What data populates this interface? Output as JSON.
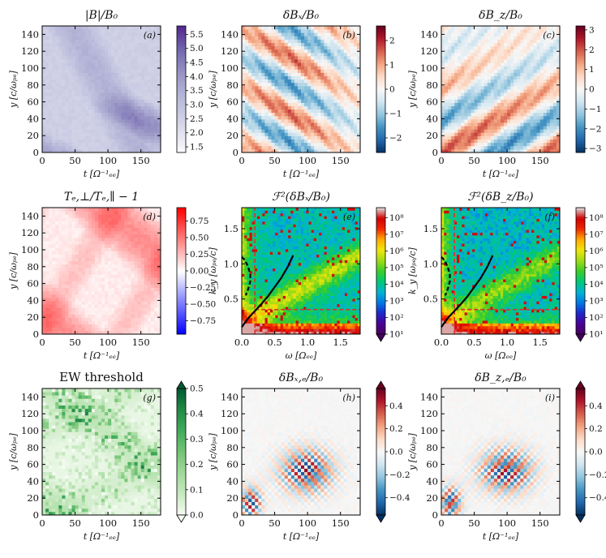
{
  "figure": {
    "panels": [
      {
        "id": "a",
        "tag": "(a)",
        "title": "|B|/B₀",
        "xlabel": "t [Ω⁻¹ₑₑ]",
        "ylabel": "y [c/ωₚₑ]",
        "cmap": "purples",
        "xticks": [
          "0",
          "50",
          "100",
          "150"
        ],
        "yticks": [
          "0",
          "20",
          "40",
          "60",
          "80",
          "100",
          "120",
          "140"
        ],
        "colorbar": {
          "ticks": [
            "1.5",
            "2.0",
            "2.5",
            "3.0",
            "3.5",
            "4.0",
            "4.5",
            "5.0",
            "5.5"
          ],
          "range": [
            1.3,
            5.8
          ],
          "extend": "none"
        }
      },
      {
        "id": "b",
        "tag": "(b)",
        "title": "δBₓ/B₀",
        "xlabel": "t [Ω⁻¹ₑₑ]",
        "ylabel": "y [c/ωₚₑ]",
        "cmap": "rdbu",
        "xticks": [
          "0",
          "50",
          "100",
          "150"
        ],
        "yticks": [
          "0",
          "20",
          "40",
          "60",
          "80",
          "100",
          "120",
          "140"
        ],
        "colorbar": {
          "ticks": [
            "−2",
            "−1",
            "0",
            "1",
            "2"
          ],
          "range": [
            -2.6,
            2.6
          ],
          "extend": "none"
        }
      },
      {
        "id": "c",
        "tag": "(c)",
        "title": "δB_z/B₀",
        "xlabel": "t [Ω⁻¹ₑₑ]",
        "ylabel": "y [c/ωₚₑ]",
        "cmap": "rdbu",
        "xticks": [
          "0",
          "50",
          "100",
          "150"
        ],
        "yticks": [
          "0",
          "20",
          "40",
          "60",
          "80",
          "100",
          "120",
          "140"
        ],
        "colorbar": {
          "ticks": [
            "−3",
            "−2",
            "−1",
            "0",
            "1",
            "2",
            "3"
          ],
          "range": [
            -3.2,
            3.2
          ],
          "extend": "none"
        }
      },
      {
        "id": "d",
        "tag": "(d)",
        "title": "Tₑ,⊥/Tₑ,∥ − 1",
        "xlabel": "t [Ω⁻¹ₑₑ]",
        "ylabel": "y [c/ωₚₑ]",
        "cmap": "bwr",
        "xticks": [
          "0",
          "50",
          "100",
          "150"
        ],
        "yticks": [
          "0",
          "20",
          "40",
          "60",
          "80",
          "100",
          "120",
          "140"
        ],
        "colorbar": {
          "ticks": [
            "−0.75",
            "−0.50",
            "−0.25",
            "0.00",
            "0.25",
            "0.50",
            "0.75"
          ],
          "range": [
            -0.95,
            0.95
          ],
          "extend": "none"
        }
      },
      {
        "id": "e",
        "tag": "(e)",
        "title": "ℱ²(δBₓ/B₀)",
        "xlabel": "ω [Ωₑₑ]",
        "ylabel": "k_y [ωₚₑ/c]",
        "cmap": "spectral",
        "xticks": [
          "0.0",
          "0.5",
          "1.0",
          "1.5"
        ],
        "yticks": [
          "0.5",
          "1.0",
          "1.5"
        ],
        "colorbar": {
          "ticks": [
            "10¹",
            "10²",
            "10³",
            "10⁴",
            "10⁵",
            "10⁶",
            "10⁷",
            "10⁸"
          ],
          "range": [
            1,
            8.6
          ],
          "extend": "min"
        }
      },
      {
        "id": "f",
        "tag": "(f)",
        "title": "ℱ²(δB_z/B₀)",
        "xlabel": "ω [Ωₑₑ]",
        "ylabel": "k_y [ωₚₑ/c]",
        "cmap": "spectral",
        "xticks": [
          "0.0",
          "0.5",
          "1.0",
          "1.5"
        ],
        "yticks": [
          "0.5",
          "1.0",
          "1.5"
        ],
        "colorbar": {
          "ticks": [
            "10¹",
            "10²",
            "10³",
            "10⁴",
            "10⁵",
            "10⁶",
            "10⁷",
            "10⁸"
          ],
          "range": [
            1,
            8.6
          ],
          "extend": "min"
        }
      },
      {
        "id": "g",
        "tag": "(g)",
        "title": "EW threshold",
        "xlabel": "t [Ω⁻¹ₑₑ]",
        "ylabel": "y [c/ωₚₑ]",
        "cmap": "greens",
        "xticks": [
          "0",
          "50",
          "100",
          "150"
        ],
        "yticks": [
          "0",
          "20",
          "40",
          "60",
          "80",
          "100",
          "120",
          "140"
        ],
        "colorbar": {
          "ticks": [
            "0.0",
            "0.1",
            "0.2",
            "0.3",
            "0.4",
            "0.5"
          ],
          "range": [
            0,
            0.5
          ],
          "extend": "both"
        }
      },
      {
        "id": "h",
        "tag": "(h)",
        "title": "δBₓ,ₑ/B₀",
        "xlabel": "t [Ω⁻¹ₑₑ]",
        "ylabel": "y [c/ωₚₑ]",
        "cmap": "rdbu",
        "xticks": [
          "0",
          "50",
          "100",
          "150"
        ],
        "yticks": [
          "0",
          "20",
          "40",
          "60",
          "80",
          "100",
          "120",
          "140"
        ],
        "colorbar": {
          "ticks": [
            "−0.4",
            "−0.2",
            "0.0",
            "0.2",
            "0.4"
          ],
          "range": [
            -0.55,
            0.55
          ],
          "extend": "both"
        }
      },
      {
        "id": "i",
        "tag": "(i)",
        "title": "δB_z,ₑ/B₀",
        "xlabel": "t [Ω⁻¹ₑₑ]",
        "ylabel": "y [c/ωₚₑ]",
        "cmap": "rdbu",
        "xticks": [
          "0",
          "50",
          "100",
          "150"
        ],
        "yticks": [
          "0",
          "20",
          "40",
          "60",
          "80",
          "100",
          "120",
          "140"
        ],
        "colorbar": {
          "ticks": [
            "−0.4",
            "−0.2",
            "0.0",
            "0.2",
            "0.4"
          ],
          "range": [
            -0.55,
            0.55
          ],
          "extend": "both"
        }
      }
    ]
  },
  "chart_data": [
    {
      "type": "heatmap",
      "panel": "a",
      "title": "|B|/B0",
      "xlabel": "t [Ωce^-1]",
      "ylabel": "y [c/ωpe]",
      "xlim": [
        0,
        180
      ],
      "ylim": [
        0,
        150
      ],
      "xticks": [
        0,
        50,
        100,
        150
      ],
      "yticks": [
        0,
        20,
        40,
        60,
        80,
        100,
        120,
        140
      ],
      "colorbar_range": [
        1.3,
        5.8
      ],
      "colorbar_ticks": [
        1.5,
        2.0,
        2.5,
        3.0,
        3.5,
        4.0,
        4.5,
        5.0,
        5.5
      ]
    },
    {
      "type": "heatmap",
      "panel": "b",
      "title": "δBx/B0",
      "xlim": [
        0,
        180
      ],
      "ylim": [
        0,
        150
      ],
      "colorbar_range": [
        -2.6,
        2.6
      ],
      "colorbar_ticks": [
        -2,
        -1,
        0,
        1,
        2
      ]
    },
    {
      "type": "heatmap",
      "panel": "c",
      "title": "δBz/B0",
      "xlim": [
        0,
        180
      ],
      "ylim": [
        0,
        150
      ],
      "colorbar_range": [
        -3.2,
        3.2
      ],
      "colorbar_ticks": [
        -3,
        -2,
        -1,
        0,
        1,
        2,
        3
      ]
    },
    {
      "type": "heatmap",
      "panel": "d",
      "title": "Te,perp/Te,par - 1",
      "xlim": [
        0,
        180
      ],
      "ylim": [
        0,
        150
      ],
      "colorbar_range": [
        -0.95,
        0.95
      ],
      "colorbar_ticks": [
        -0.75,
        -0.5,
        -0.25,
        0,
        0.25,
        0.5,
        0.75
      ]
    },
    {
      "type": "heatmap",
      "panel": "e",
      "title": "F^2(δBx/B0)",
      "xlabel": "ω [Ωce]",
      "ylabel": "ky [ωpe/c]",
      "xlim": [
        0,
        1.8
      ],
      "ylim": [
        0,
        1.8
      ],
      "log_colorbar_exponent_range": [
        1,
        8.6
      ],
      "overlay_lines": [
        {
          "style": "red-dashed",
          "points": [
            [
              0.2,
              0
            ],
            [
              0.2,
              1.8
            ]
          ]
        },
        {
          "style": "red-dashed",
          "points": [
            [
              0.2,
              0.35
            ],
            [
              1.8,
              0.35
            ]
          ]
        },
        {
          "style": "black-solid",
          "points": [
            [
              0,
              0.1
            ],
            [
              0.1,
              0.23
            ],
            [
              0.2,
              0.33
            ],
            [
              0.3,
              0.43
            ],
            [
              0.4,
              0.54
            ],
            [
              0.5,
              0.67
            ],
            [
              0.6,
              0.8
            ],
            [
              0.7,
              0.96
            ],
            [
              0.78,
              1.12
            ]
          ]
        },
        {
          "style": "black-dashed",
          "points": [
            [
              0,
              1.1
            ],
            [
              0.05,
              1.05
            ],
            [
              0.1,
              0.95
            ],
            [
              0.13,
              0.85
            ],
            [
              0.13,
              0.75
            ],
            [
              0.1,
              0.65
            ],
            [
              0.06,
              0.55
            ]
          ]
        }
      ]
    },
    {
      "type": "heatmap",
      "panel": "f",
      "title": "F^2(δBz/B0)",
      "xlabel": "ω [Ωce]",
      "ylabel": "ky [ωpe/c]",
      "xlim": [
        0,
        1.8
      ],
      "ylim": [
        0,
        1.8
      ],
      "log_colorbar_exponent_range": [
        1,
        8.6
      ],
      "overlay_lines": [
        {
          "style": "red-dashed",
          "points": [
            [
              0.2,
              0
            ],
            [
              0.2,
              1.8
            ]
          ]
        },
        {
          "style": "red-dashed",
          "points": [
            [
              0.2,
              0.35
            ],
            [
              1.8,
              0.35
            ]
          ]
        },
        {
          "style": "black-solid",
          "points": [
            [
              0,
              0.1
            ],
            [
              0.1,
              0.23
            ],
            [
              0.2,
              0.33
            ],
            [
              0.3,
              0.43
            ],
            [
              0.4,
              0.54
            ],
            [
              0.5,
              0.67
            ],
            [
              0.6,
              0.8
            ],
            [
              0.7,
              0.96
            ],
            [
              0.78,
              1.12
            ]
          ]
        },
        {
          "style": "black-dashed",
          "points": [
            [
              0,
              1.1
            ],
            [
              0.05,
              1.05
            ],
            [
              0.1,
              0.95
            ],
            [
              0.13,
              0.85
            ],
            [
              0.13,
              0.75
            ],
            [
              0.1,
              0.65
            ],
            [
              0.06,
              0.55
            ]
          ]
        }
      ]
    },
    {
      "type": "heatmap",
      "panel": "g",
      "title": "EW threshold",
      "xlim": [
        0,
        180
      ],
      "ylim": [
        0,
        150
      ],
      "colorbar_range": [
        0,
        0.5
      ],
      "colorbar_ticks": [
        0,
        0.1,
        0.2,
        0.3,
        0.4,
        0.5
      ]
    },
    {
      "type": "heatmap",
      "panel": "h",
      "title": "δBx,e/B0",
      "xlim": [
        0,
        180
      ],
      "ylim": [
        0,
        150
      ],
      "colorbar_range": [
        -0.55,
        0.55
      ],
      "colorbar_ticks": [
        -0.4,
        -0.2,
        0,
        0.2,
        0.4
      ]
    },
    {
      "type": "heatmap",
      "panel": "i",
      "title": "δBz,e/B0",
      "xlim": [
        0,
        180
      ],
      "ylim": [
        0,
        150
      ],
      "colorbar_range": [
        -0.55,
        0.55
      ],
      "colorbar_ticks": [
        -0.4,
        -0.2,
        0,
        0.2,
        0.4
      ]
    }
  ]
}
